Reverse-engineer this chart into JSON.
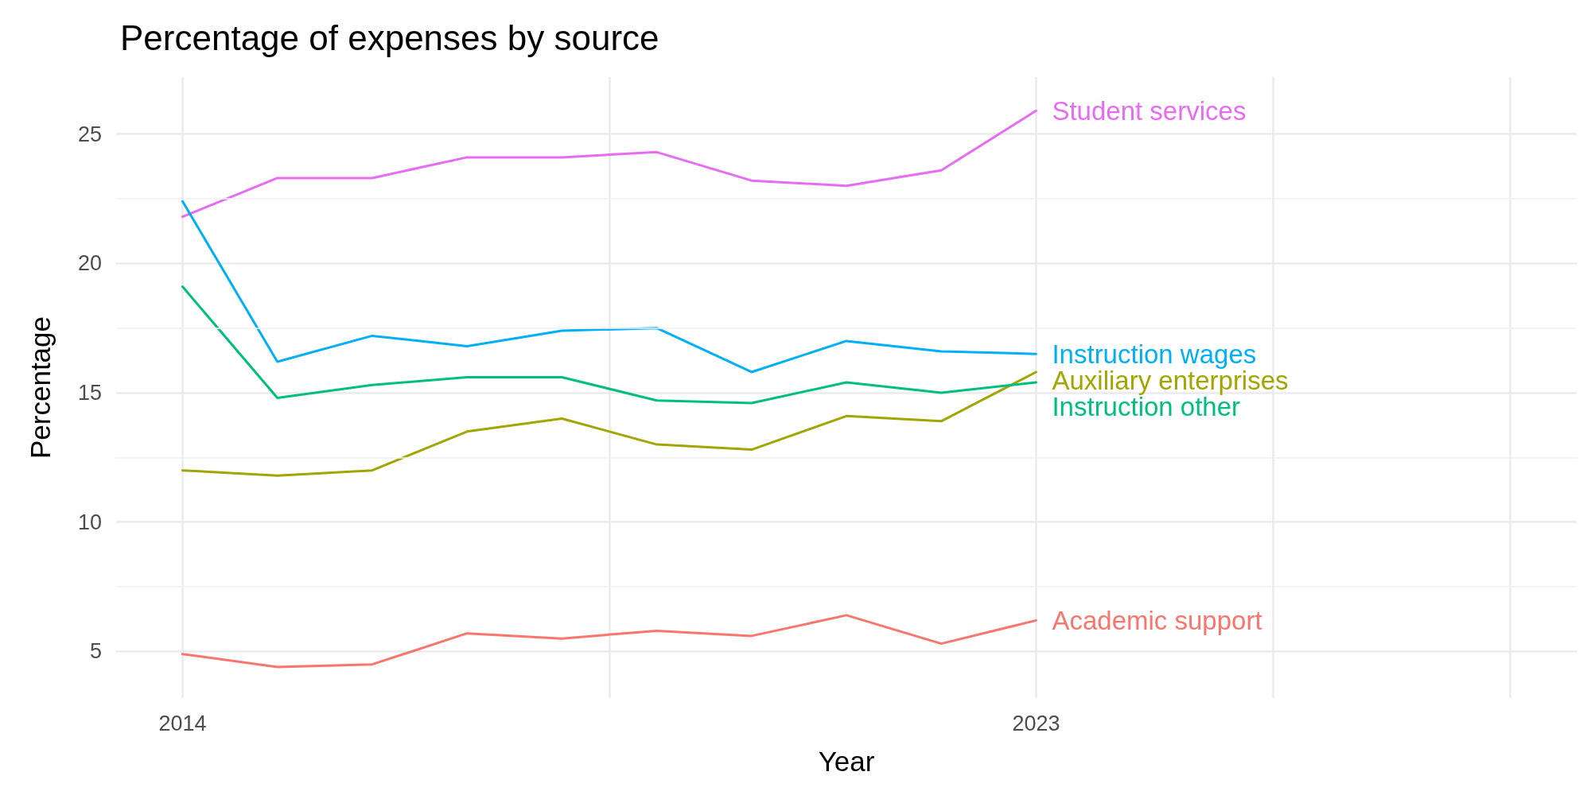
{
  "chart_data": {
    "type": "line",
    "title": "Percentage of expenses by source",
    "xlabel": "Year",
    "ylabel": "Percentage",
    "x": [
      2014,
      2015,
      2016,
      2017,
      2018,
      2019,
      2020,
      2021,
      2022,
      2023
    ],
    "xlim": [
      2013.3,
      2028.7
    ],
    "xticks": [
      2014,
      {
        "value": 2018.5,
        "label": null
      },
      2023,
      {
        "value": 2025.5,
        "label": null
      },
      {
        "value": 2028,
        "label": null
      }
    ],
    "ylim": [
      3.2,
      27.2
    ],
    "yticks": [
      5,
      10,
      15,
      20,
      25
    ],
    "grid": true,
    "legend": false,
    "marker": "none",
    "line_style": "solid",
    "series": [
      {
        "name": "Student services",
        "color": "#e76bf3",
        "values": [
          21.8,
          23.3,
          23.3,
          24.1,
          24.1,
          24.3,
          23.2,
          23.0,
          23.6,
          25.9
        ]
      },
      {
        "name": "Instruction wages",
        "color": "#00b0f6",
        "values": [
          22.4,
          16.2,
          17.2,
          16.8,
          17.4,
          17.5,
          15.8,
          17.0,
          16.6,
          16.5
        ]
      },
      {
        "name": "Auxiliary enterprises",
        "color": "#a3a500",
        "values": [
          12.0,
          11.8,
          12.0,
          13.5,
          14.0,
          13.0,
          12.8,
          14.1,
          13.9,
          15.8
        ]
      },
      {
        "name": "Instruction other",
        "color": "#00bf7d",
        "values": [
          19.1,
          14.8,
          15.3,
          15.6,
          15.6,
          14.7,
          14.6,
          15.4,
          15.0,
          15.4
        ]
      },
      {
        "name": "Academic support",
        "color": "#f8766d",
        "values": [
          4.9,
          4.4,
          4.5,
          5.7,
          5.5,
          5.8,
          5.6,
          6.4,
          5.3,
          6.2
        ]
      }
    ]
  }
}
